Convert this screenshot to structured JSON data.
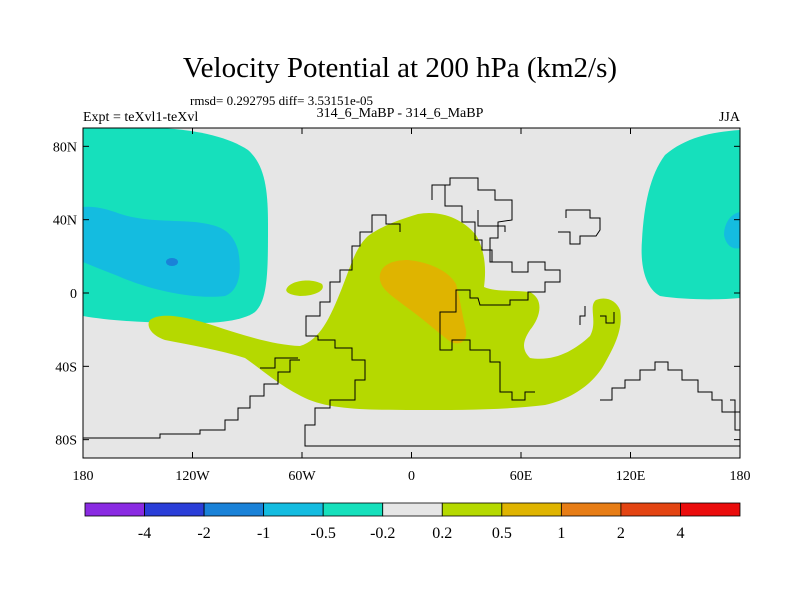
{
  "header": {
    "title": "Velocity Potential at 200 hPa (km2/s)",
    "subline": "rmsd= 0.292795 diff= 3.53151e-05",
    "left_label": "Expt = teXvl1-teXvl",
    "center_label": "314_6_MaBP - 314_6_MaBP",
    "right_label": "JJA"
  },
  "chart_data": {
    "type": "heatmap",
    "title": "Velocity Potential at 200 hPa (km2/s)",
    "projection": "cylindrical-equidistant",
    "x_range": [
      -180,
      180
    ],
    "y_range": [
      -90,
      90
    ],
    "x_ticks": [
      {
        "value": -180,
        "label": "180"
      },
      {
        "value": -120,
        "label": "120W"
      },
      {
        "value": -60,
        "label": "60W"
      },
      {
        "value": 0,
        "label": "0"
      },
      {
        "value": 60,
        "label": "60E"
      },
      {
        "value": 120,
        "label": "120E"
      },
      {
        "value": 180,
        "label": "180"
      }
    ],
    "y_ticks": [
      {
        "value": 80,
        "label": "80N"
      },
      {
        "value": 40,
        "label": "40N"
      },
      {
        "value": 0,
        "label": "0"
      },
      {
        "value": -40,
        "label": "40S"
      },
      {
        "value": -80,
        "label": "80S"
      }
    ],
    "background_level": "-0.2 to 0.2",
    "colorbar": {
      "labels": [
        "-4",
        "-2",
        "-1",
        "-0.5",
        "-0.2",
        "0.2",
        "0.5",
        "1",
        "2",
        "4"
      ],
      "colors": [
        "#8a2be2",
        "#2a3ed8",
        "#1a82d8",
        "#14bce0",
        "#16e0bc",
        "#e6e6e6",
        "#b5d900",
        "#dfb400",
        "#e77d16",
        "#e34412",
        "#ea0c0c"
      ]
    },
    "regions": [
      {
        "name": "positive-0.2-0.5",
        "level": "0.2 to 0.5",
        "color": "#b5d900"
      },
      {
        "name": "positive-0.5-1",
        "level": "0.5 to 1",
        "color": "#dfb400"
      },
      {
        "name": "negative-0.5-0.2",
        "level": "-0.5 to -0.2",
        "color": "#16e0bc"
      },
      {
        "name": "negative-1-0.5",
        "level": "-1 to -0.5",
        "color": "#14bce0"
      },
      {
        "name": "negative-2-1",
        "level": "-2 to -1",
        "color": "#1a82d8"
      }
    ]
  }
}
